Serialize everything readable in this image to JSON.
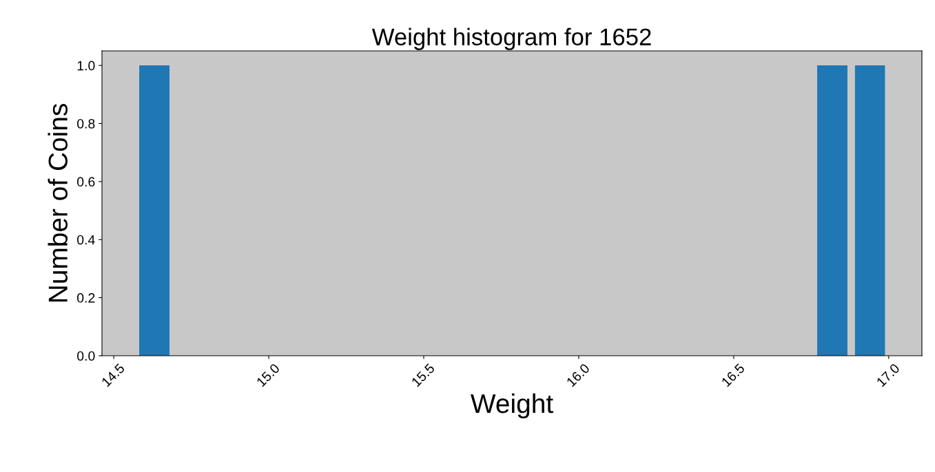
{
  "chart_data": {
    "type": "histogram",
    "title": "Weight histogram for 1652",
    "xlabel": "Weight",
    "ylabel": "Number of Coins",
    "bins": [
      14.57,
      14.692,
      14.813,
      14.935,
      15.056,
      15.178,
      15.299,
      15.421,
      15.542,
      15.664,
      15.785,
      15.907,
      16.028,
      16.15,
      16.271,
      16.393,
      16.514,
      16.636,
      16.757,
      16.879,
      17.0
    ],
    "values": [
      1,
      0,
      0,
      0,
      0,
      0,
      0,
      0,
      0,
      0,
      0,
      0,
      0,
      0,
      0,
      0,
      0,
      0,
      1,
      1
    ],
    "color": "#1f77b4",
    "xlim": [
      14.462,
      17.107
    ],
    "ylim": [
      0,
      1.05
    ],
    "xticks": [
      {
        "value": 14.5,
        "label": "14.5"
      },
      {
        "value": 15.0,
        "label": "15.0"
      },
      {
        "value": 15.5,
        "label": "15.5"
      },
      {
        "value": 16.0,
        "label": "16.0"
      },
      {
        "value": 16.5,
        "label": "16.5"
      },
      {
        "value": 17.0,
        "label": "17.0"
      }
    ],
    "yticks": [
      {
        "value": 0,
        "label": "0.0"
      },
      {
        "value": 0.2,
        "label": "0.2"
      },
      {
        "value": 0.4,
        "label": "0.4"
      },
      {
        "value": 0.6,
        "label": "0.6"
      },
      {
        "value": 0.8,
        "label": "0.8"
      },
      {
        "value": 1.0,
        "label": "1.0"
      }
    ],
    "grid": false
  }
}
